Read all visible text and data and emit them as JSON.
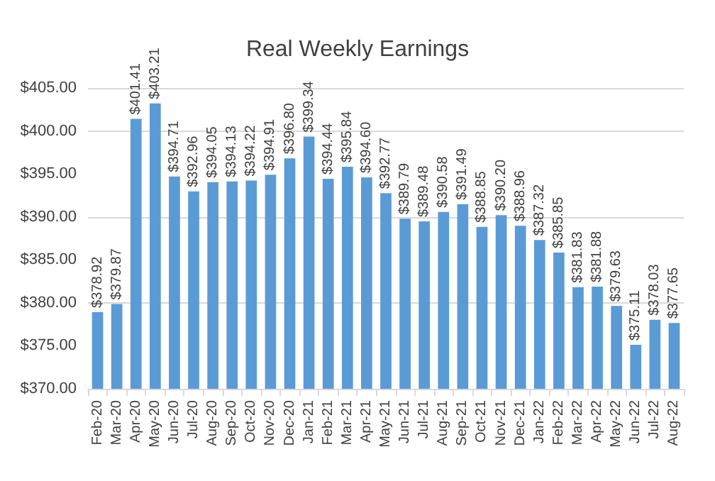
{
  "chart_data": {
    "type": "bar",
    "title": "Real Weekly Earnings",
    "categories": [
      "Feb-20",
      "Mar-20",
      "Apr-20",
      "May-20",
      "Jun-20",
      "Jul-20",
      "Aug-20",
      "Sep-20",
      "Oct-20",
      "Nov-20",
      "Dec-20",
      "Jan-21",
      "Feb-21",
      "Mar-21",
      "Apr-21",
      "May-21",
      "Jun-21",
      "Jul-21",
      "Aug-21",
      "Sep-21",
      "Oct-21",
      "Nov-21",
      "Dec-21",
      "Jan-22",
      "Feb-22",
      "Mar-22",
      "Apr-22",
      "May-22",
      "Jun-22",
      "Jul-22",
      "Aug-22"
    ],
    "values": [
      378.92,
      379.87,
      401.41,
      403.21,
      394.71,
      392.96,
      394.05,
      394.13,
      394.22,
      394.91,
      396.8,
      399.34,
      394.44,
      395.84,
      394.6,
      392.77,
      389.79,
      389.48,
      390.58,
      391.49,
      388.85,
      390.2,
      388.96,
      387.32,
      385.85,
      381.83,
      381.88,
      379.63,
      375.11,
      378.03,
      377.65
    ],
    "value_labels": [
      "$378.92",
      "$379.87",
      "$401.41",
      "$403.21",
      "$394.71",
      "$392.96",
      "$394.05",
      "$394.13",
      "$394.22",
      "$394.91",
      "$396.80",
      "$399.34",
      "$394.44",
      "$395.84",
      "$394.60",
      "$392.77",
      "$389.79",
      "$389.48",
      "$390.58",
      "$391.49",
      "$388.85",
      "$390.20",
      "$388.96",
      "$387.32",
      "$385.85",
      "$381.83",
      "$381.88",
      "$379.63",
      "$375.11",
      "$378.03",
      "$377.65"
    ],
    "color": "#5b9bd5",
    "ylim": [
      370,
      405
    ],
    "yticks": [
      {
        "value": 370,
        "label": "$370.00"
      },
      {
        "value": 375,
        "label": "$375.00"
      },
      {
        "value": 380,
        "label": "$380.00"
      },
      {
        "value": 385,
        "label": "$385.00"
      },
      {
        "value": 390,
        "label": "$390.00"
      },
      {
        "value": 395,
        "label": "$395.00"
      },
      {
        "value": 400,
        "label": "$400.00"
      },
      {
        "value": 405,
        "label": "$405.00"
      }
    ],
    "grid": "y"
  }
}
